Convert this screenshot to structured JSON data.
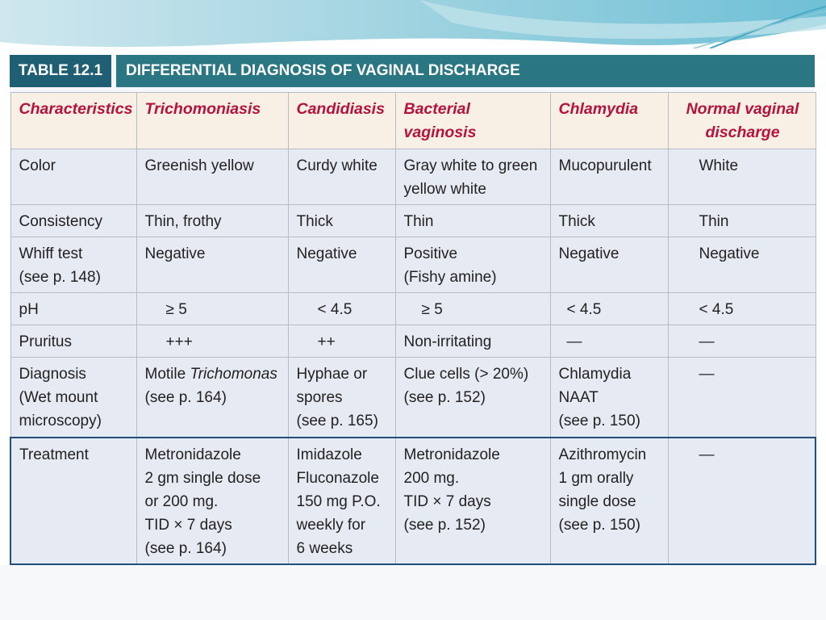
{
  "title": {
    "number": "TABLE 12.1",
    "text": "DIFFERENTIAL DIAGNOSIS OF VAGINAL DISCHARGE"
  },
  "headers": [
    "Characteristics",
    "Trichomoniasis",
    "Candidiasis",
    "Bacterial vaginosis",
    "Chlamydia",
    "Normal vaginal\ndischarge"
  ],
  "rows": [
    {
      "label": "Color",
      "cells": [
        "Greenish yellow",
        "Curdy white",
        "Gray white to green\nyellow white",
        "Mucopurulent",
        "White"
      ]
    },
    {
      "label": "Consistency",
      "cells": [
        "Thin, frothy",
        "Thick",
        "Thin",
        "Thick",
        "Thin"
      ]
    },
    {
      "label": "Whiff test\n(see p. 148)",
      "cells": [
        "Negative",
        "Negative",
        "Positive\n(Fishy amine)",
        "Negative",
        "Negative"
      ]
    },
    {
      "label": "pH",
      "cells": [
        "≥ 5",
        "< 4.5",
        "≥ 5",
        "< 4.5",
        "< 4.5"
      ]
    },
    {
      "label": "Pruritus",
      "cells": [
        "+++",
        "++",
        "Non-irritating",
        "—",
        "—"
      ]
    },
    {
      "label": "Diagnosis\n(Wet mount\nmicroscopy)",
      "cells": [
        "Motile ",
        "Hyphae or\nspores\n(see p. 165)",
        "Clue cells (> 20%)\n(see p. 152)",
        "Chlamydia\nNAAT\n(see p. 150)",
        "—"
      ]
    },
    {
      "label": "Treatment",
      "cells": [
        "Metronidazole\n2 gm single dose\nor 200 mg.\nTID × 7 days\n(see p. 164)",
        "Imidazole\nFluconazole\n150 mg P.O.\nweekly for\n6 weeks",
        "Metronidazole\n200 mg.\nTID × 7 days\n(see p. 152)",
        "Azithromycin\n1 gm orally\nsingle dose\n(see p. 150)",
        "—"
      ]
    }
  ],
  "diagnosis_trich": {
    "italic": "Trichomonas",
    "see": "(see p. 164)"
  },
  "colors": {
    "title_dark": "#1e5f74",
    "title_teal": "#2a7683",
    "header_red": "#b5123f",
    "highlight_border": "#1f4f7a"
  }
}
